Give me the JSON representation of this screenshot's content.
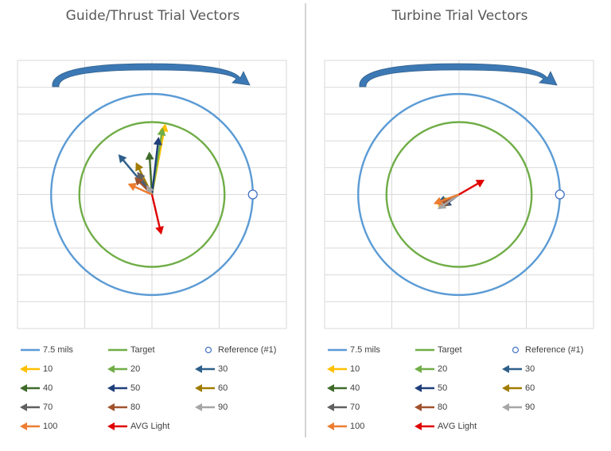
{
  "charts": [
    {
      "id": "guide",
      "title": "Guide/Thrust Trial Vectors",
      "rotation_hint": "clockwise",
      "arrows": [
        {
          "id": "10",
          "x": 1.0,
          "y": 5.3
        },
        {
          "id": "20",
          "x": 0.8,
          "y": 5.0
        },
        {
          "id": "30",
          "x": -2.5,
          "y": 3.0
        },
        {
          "id": "40",
          "x": -0.2,
          "y": 3.2
        },
        {
          "id": "50",
          "x": 0.5,
          "y": 4.3
        },
        {
          "id": "60",
          "x": -1.2,
          "y": 2.4
        },
        {
          "id": "70",
          "x": -1.1,
          "y": 1.7
        },
        {
          "id": "80",
          "x": -1.3,
          "y": 1.3
        },
        {
          "id": "90",
          "x": -0.4,
          "y": 0.7
        },
        {
          "id": "100",
          "x": -1.8,
          "y": 0.8
        },
        {
          "id": "AVG Light",
          "x": 0.7,
          "y": -3.0
        }
      ]
    },
    {
      "id": "turbine",
      "title": "Turbine Trial Vectors",
      "rotation_hint": "clockwise",
      "arrows": [
        {
          "id": "10",
          "x": -1.6,
          "y": -0.9
        },
        {
          "id": "20",
          "x": -1.5,
          "y": -0.7
        },
        {
          "id": "30",
          "x": -1.6,
          "y": -0.6
        },
        {
          "id": "40",
          "x": -1.3,
          "y": -0.8
        },
        {
          "id": "50",
          "x": -1.2,
          "y": -0.9
        },
        {
          "id": "60",
          "x": -1.4,
          "y": -0.8
        },
        {
          "id": "70",
          "x": -1.3,
          "y": -0.9
        },
        {
          "id": "80",
          "x": -1.5,
          "y": -0.8
        },
        {
          "id": "90",
          "x": -1.6,
          "y": -1.1
        },
        {
          "id": "100",
          "x": -1.9,
          "y": -0.7
        },
        {
          "id": "AVG Light",
          "x": 1.9,
          "y": 1.1
        }
      ]
    }
  ],
  "chart_data": [
    {
      "type": "scatter",
      "title": "Guide/Thrust Trial Vectors",
      "xlim": [
        -10,
        10
      ],
      "ylim": [
        -10,
        10
      ],
      "grid": true,
      "circles": [
        {
          "name": "7.5 mils",
          "radius": 7.5,
          "color": "#5b9bd5"
        },
        {
          "name": "Target",
          "radius": 5.4,
          "color": "#70ad47"
        }
      ],
      "reference": {
        "name": "Reference (#1)",
        "x": 7.5,
        "y": 0
      },
      "series": [
        {
          "name": "10",
          "vector": [
            1.0,
            5.3
          ]
        },
        {
          "name": "20",
          "vector": [
            0.8,
            5.0
          ]
        },
        {
          "name": "30",
          "vector": [
            -2.5,
            3.0
          ]
        },
        {
          "name": "40",
          "vector": [
            -0.2,
            3.2
          ]
        },
        {
          "name": "50",
          "vector": [
            0.5,
            4.3
          ]
        },
        {
          "name": "60",
          "vector": [
            -1.2,
            2.4
          ]
        },
        {
          "name": "70",
          "vector": [
            -1.1,
            1.7
          ]
        },
        {
          "name": "80",
          "vector": [
            -1.3,
            1.3
          ]
        },
        {
          "name": "90",
          "vector": [
            -0.4,
            0.7
          ]
        },
        {
          "name": "100",
          "vector": [
            -1.8,
            0.8
          ]
        },
        {
          "name": "AVG Light",
          "vector": [
            0.7,
            -3.0
          ]
        }
      ]
    },
    {
      "type": "scatter",
      "title": "Turbine Trial Vectors",
      "xlim": [
        -10,
        10
      ],
      "ylim": [
        -10,
        10
      ],
      "grid": true,
      "circles": [
        {
          "name": "7.5 mils",
          "radius": 7.5,
          "color": "#5b9bd5"
        },
        {
          "name": "Target",
          "radius": 5.4,
          "color": "#70ad47"
        }
      ],
      "reference": {
        "name": "Reference (#1)",
        "x": 7.5,
        "y": 0
      },
      "series": [
        {
          "name": "10",
          "vector": [
            -1.6,
            -0.9
          ]
        },
        {
          "name": "20",
          "vector": [
            -1.5,
            -0.7
          ]
        },
        {
          "name": "30",
          "vector": [
            -1.6,
            -0.6
          ]
        },
        {
          "name": "40",
          "vector": [
            -1.3,
            -0.8
          ]
        },
        {
          "name": "50",
          "vector": [
            -1.2,
            -0.9
          ]
        },
        {
          "name": "60",
          "vector": [
            -1.4,
            -0.8
          ]
        },
        {
          "name": "70",
          "vector": [
            -1.3,
            -0.9
          ]
        },
        {
          "name": "80",
          "vector": [
            -1.5,
            -0.8
          ]
        },
        {
          "name": "90",
          "vector": [
            -1.6,
            -1.1
          ]
        },
        {
          "name": "100",
          "vector": [
            -1.9,
            -0.7
          ]
        },
        {
          "name": "AVG Light",
          "vector": [
            1.9,
            1.1
          ]
        }
      ]
    }
  ],
  "legend": [
    {
      "label": "7.5 mils",
      "kind": "line",
      "color": "#5b9bd5"
    },
    {
      "label": "Target",
      "kind": "line",
      "color": "#70ad47"
    },
    {
      "label": "Reference (#1)",
      "kind": "marker",
      "color": "#5b9bd5"
    },
    {
      "label": "10",
      "kind": "arrow",
      "color": "#ffc000"
    },
    {
      "label": "20",
      "kind": "arrow",
      "color": "#70ad47"
    },
    {
      "label": "30",
      "kind": "arrow",
      "color": "#2e5f8a"
    },
    {
      "label": "40",
      "kind": "arrow",
      "color": "#3f6b2a"
    },
    {
      "label": "50",
      "kind": "arrow",
      "color": "#1f3f7a"
    },
    {
      "label": "60",
      "kind": "arrow",
      "color": "#a07c00"
    },
    {
      "label": "70",
      "kind": "arrow",
      "color": "#606060"
    },
    {
      "label": "80",
      "kind": "arrow",
      "color": "#a0522d"
    },
    {
      "label": "90",
      "kind": "arrow",
      "color": "#a6a6a6"
    },
    {
      "label": "100",
      "kind": "arrow",
      "color": "#ed7d31"
    },
    {
      "label": "AVG Light",
      "kind": "arrow",
      "color": "#e00000"
    }
  ]
}
